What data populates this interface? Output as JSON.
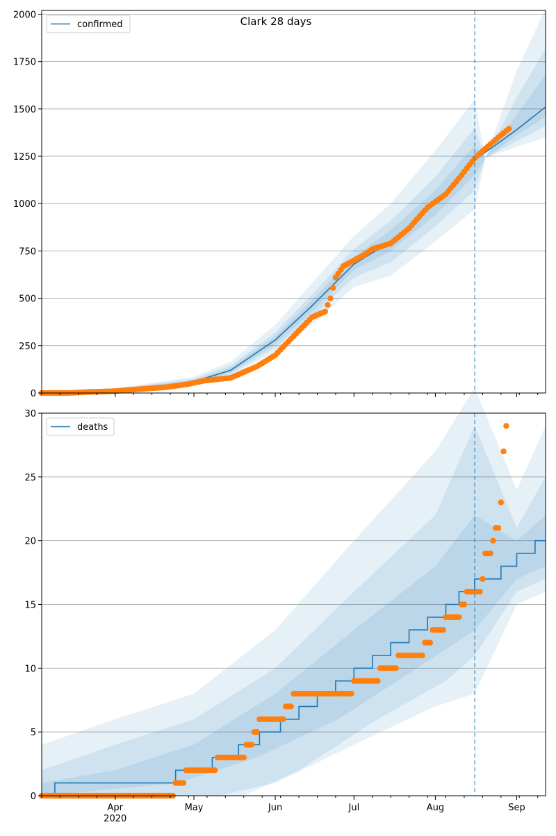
{
  "figure": {
    "title": "Clark 28 days",
    "colors": {
      "model": "#1f77b4",
      "observed": "#ff7f0e",
      "band": "#1f77b4",
      "grid": "#b0b0b0"
    },
    "x_ticks": [
      {
        "date": "2020-04-01",
        "label": "Apr"
      },
      {
        "date": "2020-05-01",
        "label": "May"
      },
      {
        "date": "2020-06-01",
        "label": "Jun"
      },
      {
        "date": "2020-07-01",
        "label": "Jul"
      },
      {
        "date": "2020-08-01",
        "label": "Aug"
      },
      {
        "date": "2020-09-01",
        "label": "Sep"
      }
    ],
    "x_year_label": "2020",
    "forecast_start": "2020-08-16",
    "x_range": [
      "2020-03-04",
      "2020-09-12"
    ]
  },
  "chart_data": [
    {
      "type": "line",
      "legend": "confirmed",
      "legend_position": "upper-left",
      "grid": "horizontal",
      "ylim": [
        0,
        2020
      ],
      "yticks": [
        0,
        250,
        500,
        750,
        1000,
        1250,
        1500,
        1750,
        2000
      ],
      "model": [
        [
          "2020-03-04",
          0
        ],
        [
          "2020-03-20",
          5
        ],
        [
          "2020-04-01",
          15
        ],
        [
          "2020-04-15",
          30
        ],
        [
          "2020-05-01",
          60
        ],
        [
          "2020-05-15",
          120
        ],
        [
          "2020-06-01",
          280
        ],
        [
          "2020-06-15",
          460
        ],
        [
          "2020-07-01",
          680
        ],
        [
          "2020-07-15",
          800
        ],
        [
          "2020-08-01",
          1000
        ],
        [
          "2020-08-16",
          1230
        ],
        [
          "2020-09-01",
          1390
        ],
        [
          "2020-09-12",
          1510
        ]
      ],
      "bands": [
        {
          "lo": [
            [
              "2020-03-04",
              0
            ],
            [
              "2020-04-01",
              8
            ],
            [
              "2020-05-01",
              40
            ],
            [
              "2020-05-15",
              90
            ],
            [
              "2020-06-01",
              220
            ],
            [
              "2020-06-15",
              360
            ],
            [
              "2020-07-01",
              560
            ],
            [
              "2020-07-15",
              620
            ],
            [
              "2020-08-01",
              800
            ],
            [
              "2020-08-16",
              970
            ],
            [
              "2020-08-20",
              1240
            ],
            [
              "2020-09-01",
              1300
            ],
            [
              "2020-09-12",
              1350
            ]
          ],
          "hi": [
            [
              "2020-03-04",
              0
            ],
            [
              "2020-04-01",
              25
            ],
            [
              "2020-05-01",
              85
            ],
            [
              "2020-05-15",
              165
            ],
            [
              "2020-06-01",
              360
            ],
            [
              "2020-06-15",
              580
            ],
            [
              "2020-07-01",
              830
            ],
            [
              "2020-07-15",
              1000
            ],
            [
              "2020-08-01",
              1280
            ],
            [
              "2020-08-16",
              1550
            ],
            [
              "2020-08-20",
              1240
            ],
            [
              "2020-09-01",
              1700
            ],
            [
              "2020-09-12",
              2030
            ]
          ]
        },
        {
          "lo": [
            [
              "2020-03-04",
              0
            ],
            [
              "2020-04-01",
              10
            ],
            [
              "2020-05-01",
              45
            ],
            [
              "2020-05-15",
              100
            ],
            [
              "2020-06-01",
              240
            ],
            [
              "2020-06-15",
              400
            ],
            [
              "2020-07-01",
              610
            ],
            [
              "2020-07-15",
              690
            ],
            [
              "2020-08-01",
              880
            ],
            [
              "2020-08-16",
              1070
            ],
            [
              "2020-08-20",
              1240
            ],
            [
              "2020-09-01",
              1330
            ],
            [
              "2020-09-12",
              1410
            ]
          ],
          "hi": [
            [
              "2020-03-04",
              0
            ],
            [
              "2020-04-01",
              20
            ],
            [
              "2020-05-01",
              75
            ],
            [
              "2020-05-15",
              145
            ],
            [
              "2020-06-01",
              320
            ],
            [
              "2020-06-15",
              520
            ],
            [
              "2020-07-01",
              760
            ],
            [
              "2020-07-15",
              910
            ],
            [
              "2020-08-01",
              1140
            ],
            [
              "2020-08-16",
              1400
            ],
            [
              "2020-08-20",
              1240
            ],
            [
              "2020-09-01",
              1560
            ],
            [
              "2020-09-12",
              1820
            ]
          ]
        },
        {
          "lo": [
            [
              "2020-03-04",
              0
            ],
            [
              "2020-04-01",
              12
            ],
            [
              "2020-05-01",
              52
            ],
            [
              "2020-05-15",
              108
            ],
            [
              "2020-06-01",
              260
            ],
            [
              "2020-06-15",
              430
            ],
            [
              "2020-07-01",
              650
            ],
            [
              "2020-07-15",
              750
            ],
            [
              "2020-08-01",
              940
            ],
            [
              "2020-08-16",
              1150
            ],
            [
              "2020-08-20",
              1240
            ],
            [
              "2020-09-01",
              1360
            ],
            [
              "2020-09-12",
              1460
            ]
          ],
          "hi": [
            [
              "2020-03-04",
              0
            ],
            [
              "2020-04-01",
              18
            ],
            [
              "2020-05-01",
              68
            ],
            [
              "2020-05-15",
              132
            ],
            [
              "2020-06-01",
              300
            ],
            [
              "2020-06-15",
              490
            ],
            [
              "2020-07-01",
              720
            ],
            [
              "2020-07-15",
              860
            ],
            [
              "2020-08-01",
              1070
            ],
            [
              "2020-08-16",
              1310
            ],
            [
              "2020-08-20",
              1240
            ],
            [
              "2020-09-01",
              1470
            ],
            [
              "2020-09-12",
              1680
            ]
          ]
        }
      ],
      "observed": [
        [
          "2020-03-04",
          0
        ],
        [
          "2020-03-14",
          0
        ],
        [
          "2020-03-22",
          5
        ],
        [
          "2020-04-01",
          10
        ],
        [
          "2020-04-10",
          20
        ],
        [
          "2020-04-20",
          30
        ],
        [
          "2020-04-28",
          45
        ],
        [
          "2020-05-05",
          65
        ],
        [
          "2020-05-15",
          80
        ],
        [
          "2020-05-25",
          140
        ],
        [
          "2020-06-01",
          200
        ],
        [
          "2020-06-08",
          300
        ],
        [
          "2020-06-15",
          400
        ],
        [
          "2020-06-20",
          430
        ],
        [
          "2020-06-22",
          500
        ],
        [
          "2020-06-24",
          610
        ],
        [
          "2020-06-27",
          670
        ],
        [
          "2020-07-01",
          700
        ],
        [
          "2020-07-05",
          730
        ],
        [
          "2020-07-08",
          760
        ],
        [
          "2020-07-15",
          790
        ],
        [
          "2020-07-22",
          870
        ],
        [
          "2020-07-29",
          980
        ],
        [
          "2020-08-05",
          1050
        ],
        [
          "2020-08-11",
          1150
        ],
        [
          "2020-08-16",
          1240
        ],
        [
          "2020-08-20",
          1290
        ],
        [
          "2020-08-25",
          1350
        ],
        [
          "2020-08-29",
          1395
        ]
      ]
    },
    {
      "type": "line",
      "legend": "deaths",
      "legend_position": "upper-left",
      "grid": "horizontal",
      "ylim": [
        0,
        30
      ],
      "yticks": [
        0,
        5,
        10,
        15,
        20,
        25,
        30
      ],
      "model": [
        [
          "2020-03-04",
          0
        ],
        [
          "2020-03-09",
          1
        ],
        [
          "2020-04-24",
          2
        ],
        [
          "2020-05-08",
          3
        ],
        [
          "2020-05-18",
          4
        ],
        [
          "2020-05-26",
          5
        ],
        [
          "2020-06-03",
          6
        ],
        [
          "2020-06-10",
          7
        ],
        [
          "2020-06-17",
          8
        ],
        [
          "2020-06-24",
          9
        ],
        [
          "2020-07-01",
          10
        ],
        [
          "2020-07-08",
          11
        ],
        [
          "2020-07-15",
          12
        ],
        [
          "2020-07-22",
          13
        ],
        [
          "2020-07-29",
          14
        ],
        [
          "2020-08-05",
          15
        ],
        [
          "2020-08-10",
          16
        ],
        [
          "2020-08-16",
          17
        ],
        [
          "2020-08-26",
          18
        ],
        [
          "2020-09-01",
          19
        ],
        [
          "2020-09-08",
          20
        ],
        [
          "2020-09-12",
          20
        ]
      ],
      "bands": [
        {
          "lo": [
            [
              "2020-03-04",
              0
            ],
            [
              "2020-05-10",
              0
            ],
            [
              "2020-06-01",
              1
            ],
            [
              "2020-07-01",
              4
            ],
            [
              "2020-08-01",
              7
            ],
            [
              "2020-08-16",
              8
            ],
            [
              "2020-09-01",
              15
            ],
            [
              "2020-09-12",
              16
            ]
          ],
          "hi": [
            [
              "2020-03-04",
              4
            ],
            [
              "2020-04-01",
              6
            ],
            [
              "2020-05-01",
              8
            ],
            [
              "2020-06-01",
              13
            ],
            [
              "2020-07-01",
              20
            ],
            [
              "2020-08-01",
              27
            ],
            [
              "2020-08-16",
              32
            ],
            [
              "2020-09-01",
              24
            ],
            [
              "2020-09-12",
              29
            ]
          ]
        },
        {
          "lo": [
            [
              "2020-03-04",
              0
            ],
            [
              "2020-05-20",
              0
            ],
            [
              "2020-06-10",
              2
            ],
            [
              "2020-07-10",
              6
            ],
            [
              "2020-08-05",
              9
            ],
            [
              "2020-08-16",
              11
            ],
            [
              "2020-09-01",
              16
            ],
            [
              "2020-09-12",
              17
            ]
          ],
          "hi": [
            [
              "2020-03-04",
              2
            ],
            [
              "2020-04-01",
              4
            ],
            [
              "2020-05-01",
              6
            ],
            [
              "2020-06-01",
              10
            ],
            [
              "2020-07-01",
              16
            ],
            [
              "2020-08-01",
              22
            ],
            [
              "2020-08-16",
              29
            ],
            [
              "2020-09-01",
              21
            ],
            [
              "2020-09-12",
              25
            ]
          ]
        },
        {
          "lo": [
            [
              "2020-03-04",
              0
            ],
            [
              "2020-04-25",
              1
            ],
            [
              "2020-05-25",
              3
            ],
            [
              "2020-06-25",
              6
            ],
            [
              "2020-07-25",
              10
            ],
            [
              "2020-08-16",
              13
            ],
            [
              "2020-09-01",
              17
            ],
            [
              "2020-09-12",
              18
            ]
          ],
          "hi": [
            [
              "2020-03-04",
              1
            ],
            [
              "2020-04-01",
              2
            ],
            [
              "2020-05-01",
              4
            ],
            [
              "2020-06-01",
              8
            ],
            [
              "2020-07-01",
              13
            ],
            [
              "2020-08-01",
              18
            ],
            [
              "2020-08-16",
              22
            ],
            [
              "2020-09-01",
              20
            ],
            [
              "2020-09-12",
              22
            ]
          ]
        }
      ],
      "observed": [
        [
          "2020-03-04",
          0
        ],
        [
          "2020-03-15",
          0
        ],
        [
          "2020-04-01",
          0
        ],
        [
          "2020-04-15",
          0
        ],
        [
          "2020-04-22",
          0
        ],
        [
          "2020-04-24",
          1
        ],
        [
          "2020-04-26",
          1
        ],
        [
          "2020-04-28",
          2
        ],
        [
          "2020-05-05",
          2
        ],
        [
          "2020-05-10",
          3
        ],
        [
          "2020-05-18",
          3
        ],
        [
          "2020-05-21",
          4
        ],
        [
          "2020-05-24",
          5
        ],
        [
          "2020-05-26",
          6
        ],
        [
          "2020-05-31",
          6
        ],
        [
          "2020-06-02",
          6
        ],
        [
          "2020-06-05",
          7
        ],
        [
          "2020-06-08",
          8
        ],
        [
          "2020-06-15",
          8
        ],
        [
          "2020-06-25",
          8
        ],
        [
          "2020-06-30",
          8
        ],
        [
          "2020-07-01",
          9
        ],
        [
          "2020-07-08",
          9
        ],
        [
          "2020-07-11",
          10
        ],
        [
          "2020-07-15",
          10
        ],
        [
          "2020-07-18",
          11
        ],
        [
          "2020-07-25",
          11
        ],
        [
          "2020-07-28",
          12
        ],
        [
          "2020-07-31",
          13
        ],
        [
          "2020-08-03",
          13
        ],
        [
          "2020-08-05",
          14
        ],
        [
          "2020-08-09",
          14
        ],
        [
          "2020-08-11",
          15
        ],
        [
          "2020-08-13",
          16
        ],
        [
          "2020-08-16",
          16
        ],
        [
          "2020-08-19",
          17
        ],
        [
          "2020-08-20",
          19
        ],
        [
          "2020-08-22",
          19
        ],
        [
          "2020-08-23",
          20
        ],
        [
          "2020-08-24",
          21
        ],
        [
          "2020-08-26",
          23
        ],
        [
          "2020-08-27",
          27
        ],
        [
          "2020-08-28",
          29
        ]
      ]
    }
  ]
}
